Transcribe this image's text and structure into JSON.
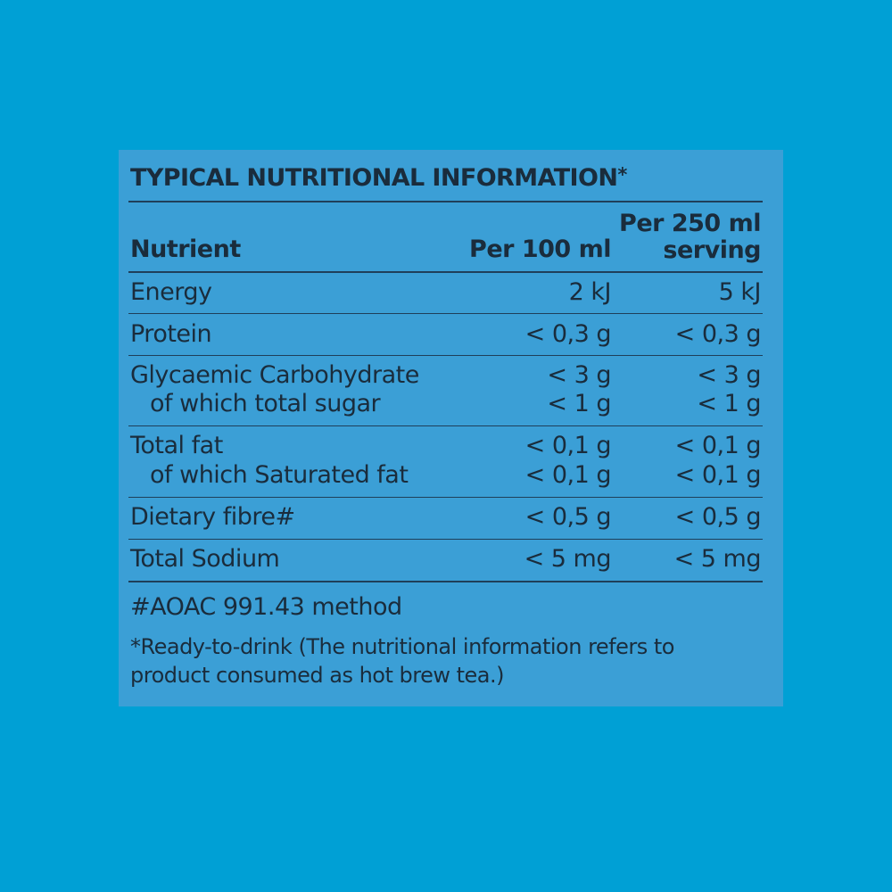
{
  "panel": {
    "title": "TYPICAL NUTRITIONAL INFORMATION",
    "title_mark": "*",
    "headers": {
      "nutrient": "Nutrient",
      "per100": "Per 100 ml",
      "per250_line1": "Per 250 ml",
      "per250_line2": "serving"
    },
    "rows": [
      {
        "name": "Energy",
        "per100": "2 kJ",
        "per250": "5 kJ"
      },
      {
        "name": "Protein",
        "per100": "< 0,3 g",
        "per250": "< 0,3 g"
      },
      {
        "name": "Glycaemic Carbohydrate",
        "per100": "< 3 g",
        "per250": "< 3 g",
        "sub_name": "of which total sugar",
        "sub_per100": "< 1 g",
        "sub_per250": "< 1 g"
      },
      {
        "name": "Total fat",
        "per100": "< 0,1 g",
        "per250": "< 0,1 g",
        "sub_name": "of which Saturated fat",
        "sub_per100": "< 0,1 g",
        "sub_per250": "< 0,1 g"
      },
      {
        "name": "Dietary fibre#",
        "per100": "< 0,5 g",
        "per250": "< 0,5 g"
      },
      {
        "name": "Total Sodium",
        "per100": "< 5 mg",
        "per250": "< 5 mg"
      }
    ],
    "footnote_method": "#AOAC 991.43 method",
    "footnote_rtd": "*Ready-to-drink (The nutritional information refers to product consumed as hot brew tea.)"
  }
}
